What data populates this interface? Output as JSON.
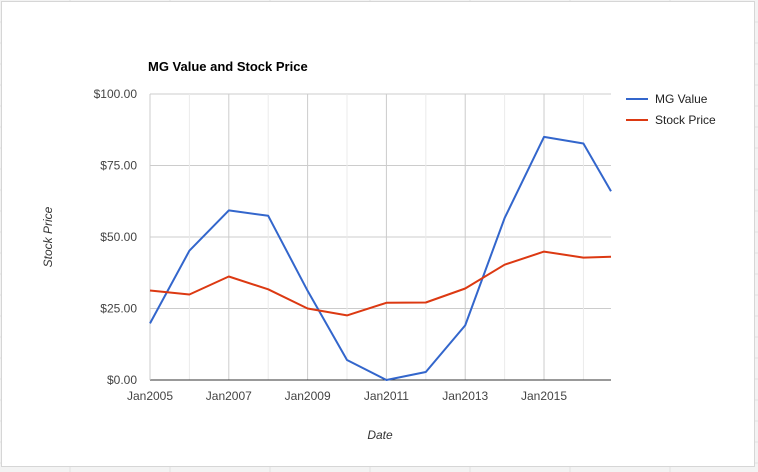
{
  "chart_data": {
    "type": "line",
    "title": "MG Value and Stock Price",
    "xlabel": "Date",
    "ylabel": "Stock Price",
    "x": [
      2005,
      2006,
      2007,
      2008,
      2009,
      2010,
      2011,
      2012,
      2013,
      2014,
      2015,
      2016,
      2016.7
    ],
    "x_ticks": [
      {
        "value": 2005,
        "label": "Jan2005"
      },
      {
        "value": 2007,
        "label": "Jan2007"
      },
      {
        "value": 2009,
        "label": "Jan2009"
      },
      {
        "value": 2011,
        "label": "Jan2011"
      },
      {
        "value": 2013,
        "label": "Jan2013"
      },
      {
        "value": 2015,
        "label": "Jan2015"
      }
    ],
    "y_ticks": [
      {
        "value": 0,
        "label": "$0.00"
      },
      {
        "value": 25,
        "label": "$25.00"
      },
      {
        "value": 50,
        "label": "$50.00"
      },
      {
        "value": 75,
        "label": "$75.00"
      },
      {
        "value": 100,
        "label": "$100.00"
      }
    ],
    "xlim": [
      2005,
      2016.7
    ],
    "ylim": [
      0,
      100
    ],
    "grid": true,
    "legend_position": "right",
    "series": [
      {
        "name": "MG Value",
        "color": "#3366cc",
        "values": [
          19.8,
          45.2,
          59.3,
          57.4,
          31.2,
          7.0,
          0.0,
          2.8,
          19.1,
          56.6,
          85.0,
          82.7,
          66.0
        ]
      },
      {
        "name": "Stock Price",
        "color": "#dc3912",
        "values": [
          31.3,
          29.9,
          36.2,
          31.7,
          25.0,
          22.6,
          27.0,
          27.1,
          32.0,
          40.3,
          44.9,
          42.8,
          43.1
        ]
      }
    ]
  }
}
